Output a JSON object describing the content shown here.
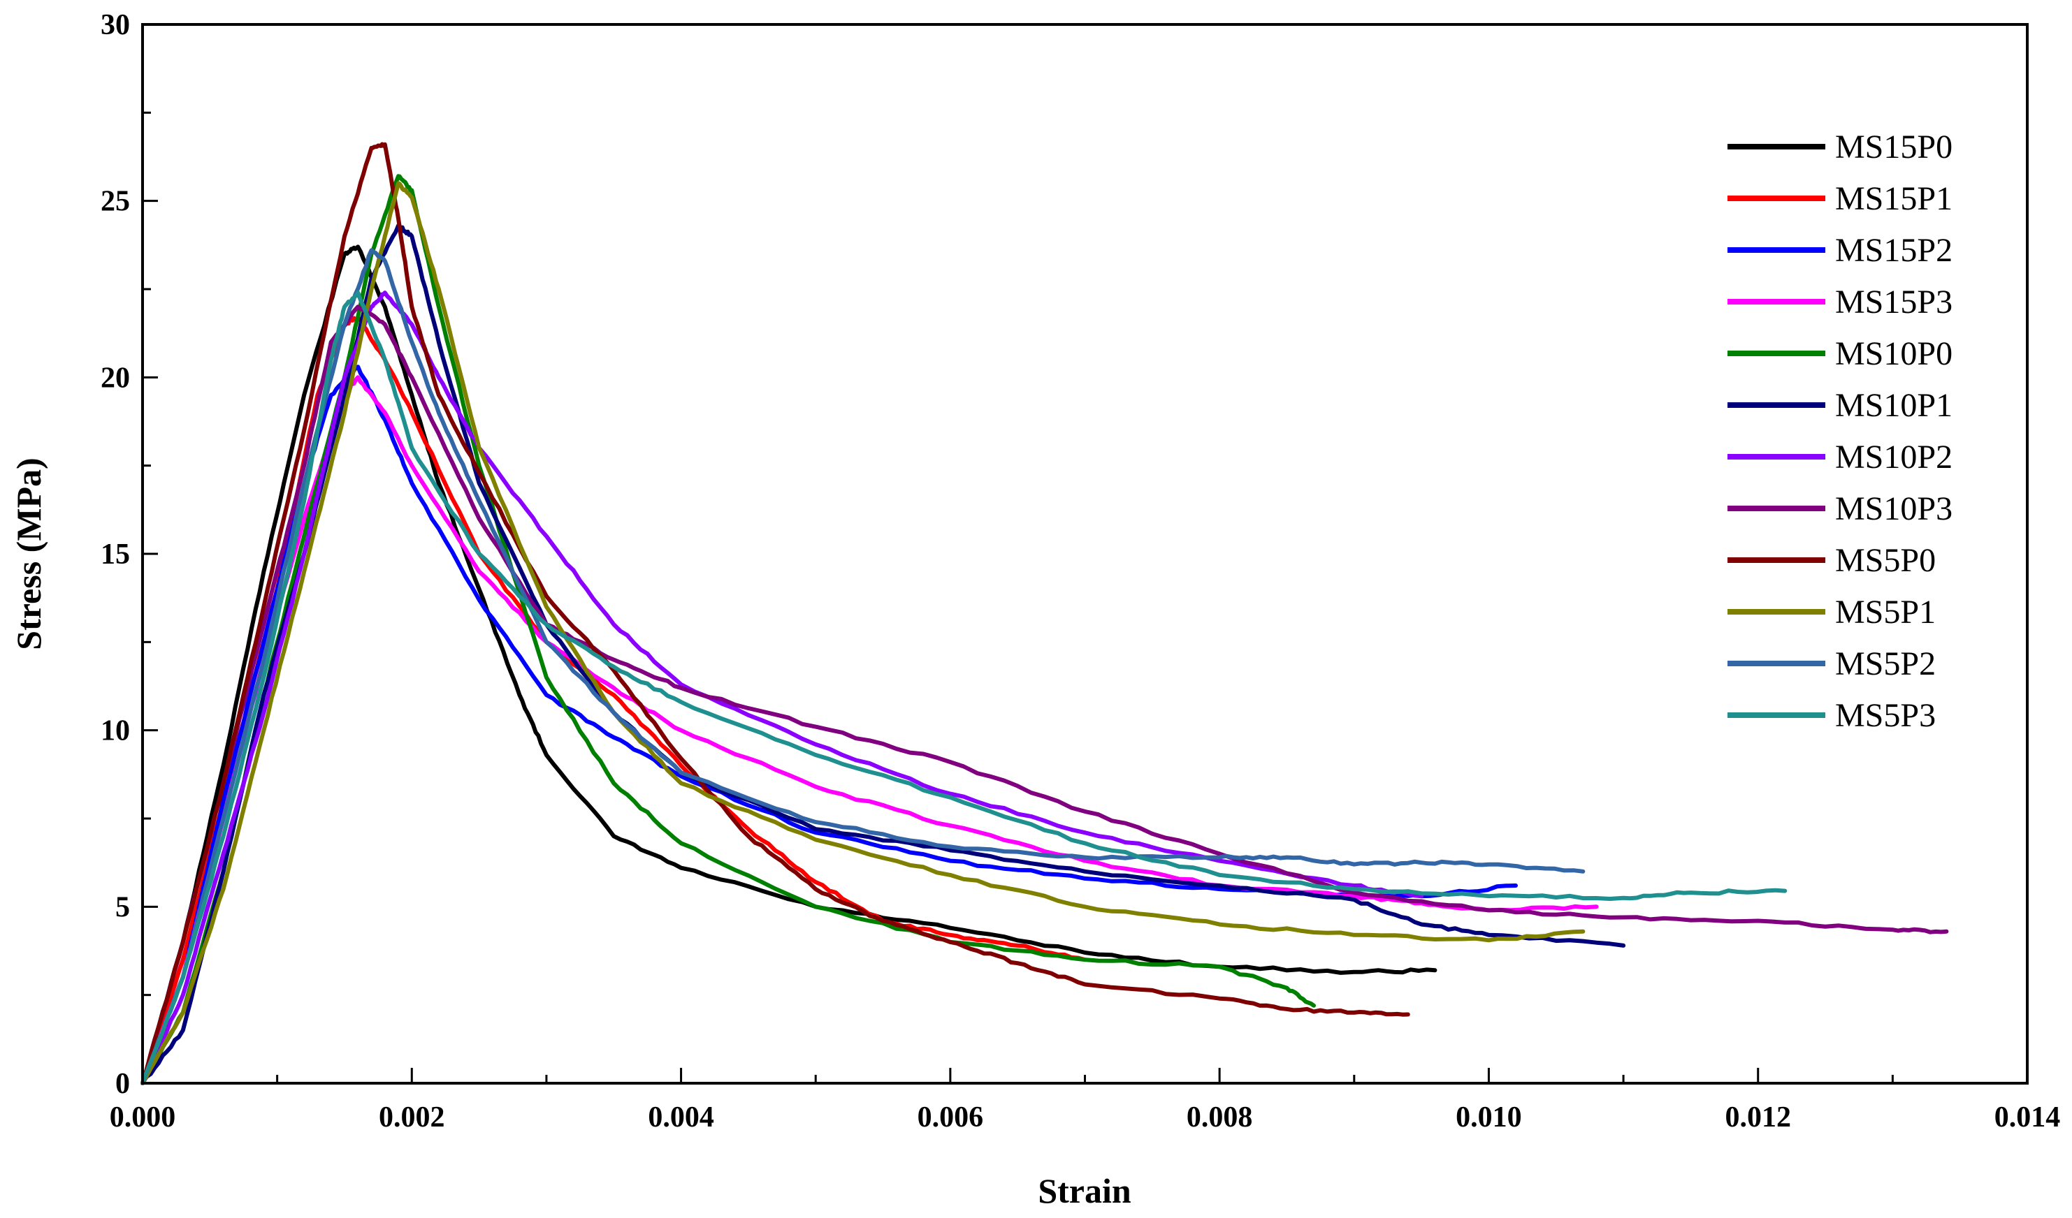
{
  "chart_data": {
    "type": "line",
    "title": "",
    "xlabel": "Strain",
    "ylabel": "Stress (MPa)",
    "xlim": [
      0,
      0.014
    ],
    "ylim": [
      0,
      30
    ],
    "x_ticks": [
      0.0,
      0.002,
      0.004,
      0.006,
      0.008,
      0.01,
      0.012,
      0.014
    ],
    "x_tick_labels": [
      "0.000",
      "0.002",
      "0.004",
      "0.006",
      "0.008",
      "0.010",
      "0.012",
      "0.014"
    ],
    "y_ticks": [
      0,
      5,
      10,
      15,
      20,
      25,
      30
    ],
    "y_tick_labels": [
      "0",
      "5",
      "10",
      "15",
      "20",
      "25",
      "30"
    ],
    "legend_position": "top-right",
    "series": [
      {
        "name": "MS15P0",
        "color": "#000000",
        "points": [
          [
            0,
            0
          ],
          [
            0.0003,
            4
          ],
          [
            0.0006,
            9
          ],
          [
            0.0009,
            14.5
          ],
          [
            0.0012,
            19.5
          ],
          [
            0.0015,
            23.5
          ],
          [
            0.0016,
            23.7
          ],
          [
            0.0018,
            22
          ],
          [
            0.002,
            19.5
          ],
          [
            0.0022,
            17
          ],
          [
            0.0025,
            14
          ],
          [
            0.0028,
            11
          ],
          [
            0.003,
            9.3
          ],
          [
            0.0035,
            7
          ],
          [
            0.004,
            6.1
          ],
          [
            0.005,
            5.0
          ],
          [
            0.006,
            4.4
          ],
          [
            0.007,
            3.7
          ],
          [
            0.008,
            3.3
          ],
          [
            0.009,
            3.15
          ],
          [
            0.0096,
            3.2
          ]
        ]
      },
      {
        "name": "MS15P1",
        "color": "#ff0000",
        "points": [
          [
            0,
            0
          ],
          [
            0.0003,
            3.5
          ],
          [
            0.0006,
            8
          ],
          [
            0.001,
            14
          ],
          [
            0.0013,
            19.5
          ],
          [
            0.0015,
            21.5
          ],
          [
            0.0016,
            21.7
          ],
          [
            0.0018,
            20.5
          ],
          [
            0.002,
            19
          ],
          [
            0.0025,
            15
          ],
          [
            0.003,
            12.5
          ],
          [
            0.0035,
            11
          ],
          [
            0.004,
            9
          ],
          [
            0.0045,
            7.2
          ],
          [
            0.005,
            5.7
          ],
          [
            0.0055,
            4.6
          ],
          [
            0.006,
            4.2
          ],
          [
            0.0065,
            3.9
          ],
          [
            0.007,
            3.5
          ]
        ]
      },
      {
        "name": "MS15P2",
        "color": "#0000ff",
        "points": [
          [
            0,
            0
          ],
          [
            0.0003,
            3
          ],
          [
            0.0006,
            8
          ],
          [
            0.0009,
            12.5
          ],
          [
            0.0012,
            17
          ],
          [
            0.0014,
            19.5
          ],
          [
            0.0016,
            20.3
          ],
          [
            0.0018,
            18.8
          ],
          [
            0.002,
            17
          ],
          [
            0.0025,
            13.7
          ],
          [
            0.003,
            11
          ],
          [
            0.0035,
            9.8
          ],
          [
            0.004,
            8.7
          ],
          [
            0.005,
            7.1
          ],
          [
            0.006,
            6.3
          ],
          [
            0.007,
            5.8
          ],
          [
            0.008,
            5.5
          ],
          [
            0.009,
            5.3
          ],
          [
            0.0095,
            5.3
          ],
          [
            0.0102,
            5.6
          ]
        ]
      },
      {
        "name": "MS15P3",
        "color": "#ff00ff",
        "points": [
          [
            0,
            0
          ],
          [
            0.0003,
            3
          ],
          [
            0.0006,
            7.5
          ],
          [
            0.0009,
            12
          ],
          [
            0.0012,
            16
          ],
          [
            0.0015,
            19.5
          ],
          [
            0.0016,
            20
          ],
          [
            0.0018,
            19
          ],
          [
            0.002,
            17.5
          ],
          [
            0.0025,
            14.5
          ],
          [
            0.003,
            12.5
          ],
          [
            0.0035,
            11.2
          ],
          [
            0.004,
            10
          ],
          [
            0.005,
            8.4
          ],
          [
            0.006,
            7.3
          ],
          [
            0.007,
            6.3
          ],
          [
            0.008,
            5.6
          ],
          [
            0.009,
            5.3
          ],
          [
            0.0095,
            5.1
          ],
          [
            0.01,
            4.9
          ],
          [
            0.0108,
            5.0
          ]
        ]
      },
      {
        "name": "MS10P0",
        "color": "#008000",
        "points": [
          [
            0,
            0
          ],
          [
            0.0003,
            2
          ],
          [
            0.0006,
            6
          ],
          [
            0.0009,
            11
          ],
          [
            0.0012,
            15.5
          ],
          [
            0.0015,
            20
          ],
          [
            0.0017,
            23.5
          ],
          [
            0.0019,
            25.7
          ],
          [
            0.002,
            25.3
          ],
          [
            0.0022,
            22
          ],
          [
            0.0025,
            17.5
          ],
          [
            0.003,
            11.5
          ],
          [
            0.0035,
            8.5
          ],
          [
            0.004,
            6.8
          ],
          [
            0.005,
            5.0
          ],
          [
            0.006,
            4.0
          ],
          [
            0.007,
            3.5
          ],
          [
            0.008,
            3.3
          ],
          [
            0.0085,
            2.7
          ],
          [
            0.0087,
            2.2
          ]
        ]
      },
      {
        "name": "MS10P1",
        "color": "#00007a",
        "points": [
          [
            0,
            0
          ],
          [
            0.0003,
            1.5
          ],
          [
            0.0006,
            6
          ],
          [
            0.0009,
            11
          ],
          [
            0.0012,
            15
          ],
          [
            0.0015,
            19.5
          ],
          [
            0.0017,
            22.8
          ],
          [
            0.0019,
            24.3
          ],
          [
            0.002,
            24
          ],
          [
            0.0022,
            21
          ],
          [
            0.0025,
            17
          ],
          [
            0.003,
            13
          ],
          [
            0.0035,
            10.5
          ],
          [
            0.004,
            8.8
          ],
          [
            0.005,
            7.2
          ],
          [
            0.006,
            6.6
          ],
          [
            0.007,
            6.0
          ],
          [
            0.008,
            5.6
          ],
          [
            0.009,
            5.2
          ],
          [
            0.0095,
            4.5
          ],
          [
            0.01,
            4.2
          ],
          [
            0.011,
            3.9
          ]
        ]
      },
      {
        "name": "MS10P2",
        "color": "#8c00ff",
        "points": [
          [
            0,
            0
          ],
          [
            0.0003,
            2.5
          ],
          [
            0.0006,
            6.5
          ],
          [
            0.0009,
            10.5
          ],
          [
            0.0012,
            15
          ],
          [
            0.0015,
            20
          ],
          [
            0.0017,
            22
          ],
          [
            0.0018,
            22.4
          ],
          [
            0.002,
            21.5
          ],
          [
            0.0022,
            20
          ],
          [
            0.0025,
            18
          ],
          [
            0.003,
            15.5
          ],
          [
            0.0035,
            13
          ],
          [
            0.004,
            11.3
          ],
          [
            0.005,
            9.6
          ],
          [
            0.006,
            8.2
          ],
          [
            0.007,
            7.1
          ],
          [
            0.008,
            6.3
          ],
          [
            0.009,
            5.6
          ],
          [
            0.0095,
            5.3
          ]
        ]
      },
      {
        "name": "MS10P3",
        "color": "#800080",
        "points": [
          [
            0,
            0
          ],
          [
            0.0003,
            4
          ],
          [
            0.0006,
            8.5
          ],
          [
            0.0009,
            13
          ],
          [
            0.0012,
            17.5
          ],
          [
            0.0014,
            21
          ],
          [
            0.0016,
            22
          ],
          [
            0.0018,
            21.5
          ],
          [
            0.002,
            20
          ],
          [
            0.0025,
            16
          ],
          [
            0.003,
            13
          ],
          [
            0.0035,
            12
          ],
          [
            0.004,
            11.2
          ],
          [
            0.005,
            10.1
          ],
          [
            0.006,
            9.1
          ],
          [
            0.007,
            7.7
          ],
          [
            0.008,
            6.5
          ],
          [
            0.009,
            5.4
          ],
          [
            0.01,
            4.9
          ],
          [
            0.011,
            4.7
          ],
          [
            0.012,
            4.6
          ],
          [
            0.013,
            4.35
          ],
          [
            0.0134,
            4.3
          ]
        ]
      },
      {
        "name": "MS5P0",
        "color": "#7f0000",
        "points": [
          [
            0,
            0
          ],
          [
            0.0003,
            4
          ],
          [
            0.0006,
            8.5
          ],
          [
            0.0009,
            13.5
          ],
          [
            0.0012,
            18.5
          ],
          [
            0.0015,
            24
          ],
          [
            0.0017,
            26.5
          ],
          [
            0.0018,
            26.6
          ],
          [
            0.0019,
            24.5
          ],
          [
            0.002,
            22
          ],
          [
            0.0022,
            19.5
          ],
          [
            0.0025,
            17.3
          ],
          [
            0.003,
            13.8
          ],
          [
            0.0035,
            11.7
          ],
          [
            0.004,
            9.2
          ],
          [
            0.0045,
            7.0
          ],
          [
            0.005,
            5.5
          ],
          [
            0.0055,
            4.6
          ],
          [
            0.006,
            4.0
          ],
          [
            0.0065,
            3.4
          ],
          [
            0.007,
            2.8
          ],
          [
            0.008,
            2.4
          ],
          [
            0.0085,
            2.1
          ],
          [
            0.009,
            2.0
          ],
          [
            0.0094,
            1.95
          ]
        ]
      },
      {
        "name": "MS5P1",
        "color": "#808000",
        "points": [
          [
            0,
            0
          ],
          [
            0.0003,
            2
          ],
          [
            0.0006,
            5.5
          ],
          [
            0.0009,
            10
          ],
          [
            0.0012,
            14.5
          ],
          [
            0.0015,
            19
          ],
          [
            0.0017,
            22.5
          ],
          [
            0.0019,
            25.5
          ],
          [
            0.002,
            25.1
          ],
          [
            0.0022,
            22.5
          ],
          [
            0.0025,
            18
          ],
          [
            0.003,
            13.5
          ],
          [
            0.0035,
            10.5
          ],
          [
            0.004,
            8.5
          ],
          [
            0.005,
            6.9
          ],
          [
            0.006,
            5.9
          ],
          [
            0.007,
            5.0
          ],
          [
            0.008,
            4.5
          ],
          [
            0.009,
            4.2
          ],
          [
            0.01,
            4.05
          ],
          [
            0.0107,
            4.3
          ]
        ]
      },
      {
        "name": "MS5P2",
        "color": "#3366a6",
        "points": [
          [
            0,
            0
          ],
          [
            0.0003,
            3
          ],
          [
            0.0006,
            7.5
          ],
          [
            0.0009,
            12
          ],
          [
            0.0012,
            17
          ],
          [
            0.0015,
            21.5
          ],
          [
            0.0017,
            23.6
          ],
          [
            0.0018,
            23.3
          ],
          [
            0.002,
            21
          ],
          [
            0.0022,
            19
          ],
          [
            0.0025,
            16.5
          ],
          [
            0.003,
            12.5
          ],
          [
            0.0035,
            10.5
          ],
          [
            0.004,
            8.8
          ],
          [
            0.005,
            7.4
          ],
          [
            0.006,
            6.7
          ],
          [
            0.007,
            6.4
          ],
          [
            0.008,
            6.4
          ],
          [
            0.0085,
            6.4
          ],
          [
            0.009,
            6.2
          ],
          [
            0.0095,
            6.25
          ],
          [
            0.01,
            6.2
          ],
          [
            0.0107,
            6.0
          ]
        ]
      },
      {
        "name": "MS5P3",
        "color": "#1f8f8f",
        "points": [
          [
            0,
            0
          ],
          [
            0.0003,
            3
          ],
          [
            0.0006,
            7
          ],
          [
            0.0009,
            11.5
          ],
          [
            0.0012,
            16.5
          ],
          [
            0.0014,
            20.5
          ],
          [
            0.0015,
            22
          ],
          [
            0.0016,
            22.4
          ],
          [
            0.0018,
            20.5
          ],
          [
            0.002,
            18
          ],
          [
            0.0025,
            15
          ],
          [
            0.003,
            13
          ],
          [
            0.0035,
            11.8
          ],
          [
            0.004,
            10.8
          ],
          [
            0.005,
            9.3
          ],
          [
            0.006,
            8.1
          ],
          [
            0.007,
            6.8
          ],
          [
            0.008,
            5.9
          ],
          [
            0.009,
            5.5
          ],
          [
            0.01,
            5.3
          ],
          [
            0.011,
            5.25
          ],
          [
            0.0115,
            5.4
          ],
          [
            0.0122,
            5.45
          ]
        ]
      }
    ]
  }
}
